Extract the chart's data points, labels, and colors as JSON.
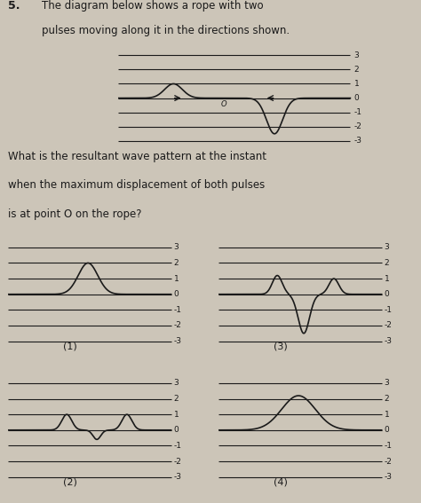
{
  "title_number": "5.",
  "title_text": "The diagram below shows a rope with two\npulses moving along it in the directions shown.",
  "question_text": "What is the resultant wave pattern at the instant\nwhen the maximum displacement of both pulses\nis at point O on the rope?",
  "bg_color": "#ccc5b8",
  "line_color": "#1a1a1a",
  "y_ticks": [
    3,
    2,
    1,
    0,
    -1,
    -2,
    -3
  ],
  "options": [
    "(1)",
    "(2)",
    "(3)",
    "(4)"
  ],
  "figsize": [
    4.74,
    5.67
  ],
  "dpi": 100
}
